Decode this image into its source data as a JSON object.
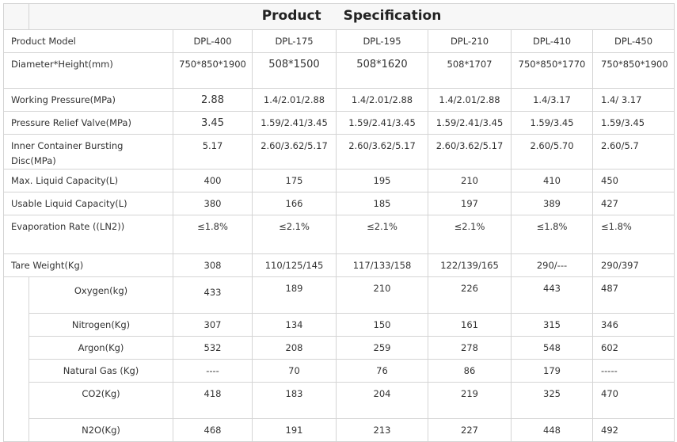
{
  "title": "Product Specification",
  "models": [
    "DPL-400",
    "DPL-175",
    "DPL-195",
    "DPL-210",
    "DPL-410",
    "DPL-450"
  ],
  "rows": [
    {
      "label": "Product Model",
      "values": [
        "DPL-400",
        "DPL-175",
        "DPL-195",
        "DPL-210",
        "DPL-410",
        "DPL-450"
      ]
    },
    {
      "label": "Diameter*Height(mm)",
      "values": [
        "750*850*1900",
        "508*1500",
        "508*1620",
        "508*1707",
        "750*850*1770",
        "750*850*1900"
      ]
    },
    {
      "label": "Working Pressure(MPa)",
      "values": [
        "2.88",
        "1.4/2.01/2.88",
        "1.4/2.01/2.88",
        "1.4/2.01/2.88",
        "1.4/3.17",
        "1.4/ 3.17"
      ]
    },
    {
      "label": "Pressure Relief Valve(MPa)",
      "values": [
        "3.45",
        "1.59/2.41/3.45",
        "1.59/2.41/3.45",
        "1.59/2.41/3.45",
        "1.59/3.45",
        "1.59/3.45"
      ]
    },
    {
      "label": "Inner Container Bursting Disc(MPa)",
      "values": [
        "5.17",
        "2.60/3.62/5.17",
        "2.60/3.62/5.17",
        "2.60/3.62/5.17",
        "2.60/5.70",
        "2.60/5.7"
      ]
    },
    {
      "label": "Max. Liquid Capacity(L)",
      "values": [
        "400",
        "175",
        "195",
        "210",
        "410",
        "450"
      ]
    },
    {
      "label": "Usable Liquid Capacity(L)",
      "values": [
        "380",
        "166",
        "185",
        "197",
        "389",
        "427"
      ]
    },
    {
      "label": "Evaporation Rate ((LN2))",
      "values": [
        "≤1.8%",
        "≤2.1%",
        "≤2.1%",
        "≤2.1%",
        "≤1.8%",
        "≤1.8%"
      ]
    },
    {
      "label": "Tare Weight(Kg)",
      "values": [
        "308",
        "110/125/145",
        "117/133/158",
        "122/139/165",
        "290/---",
        "290/397"
      ]
    }
  ],
  "gas_rows": [
    {
      "label": "Oxygen(kg)",
      "values": [
        "433",
        "189",
        "210",
        "226",
        "443",
        "487"
      ]
    },
    {
      "label": "Nitrogen(Kg)",
      "values": [
        "307",
        "134",
        "150",
        "161",
        "315",
        "346"
      ]
    },
    {
      "label": "Argon(Kg)",
      "values": [
        "532",
        "208",
        "259",
        "278",
        "548",
        "602"
      ]
    },
    {
      "label": "Natural Gas (Kg)",
      "values": [
        "----",
        "70",
        "76",
        "86",
        "179",
        "-----"
      ]
    },
    {
      "label": "CO2(Kg)",
      "values": [
        "418",
        "183",
        "204",
        "219",
        "325",
        "470"
      ]
    },
    {
      "label": "N2O(Kg)",
      "values": [
        "468",
        "191",
        "213",
        "227",
        "448",
        "492"
      ]
    }
  ]
}
